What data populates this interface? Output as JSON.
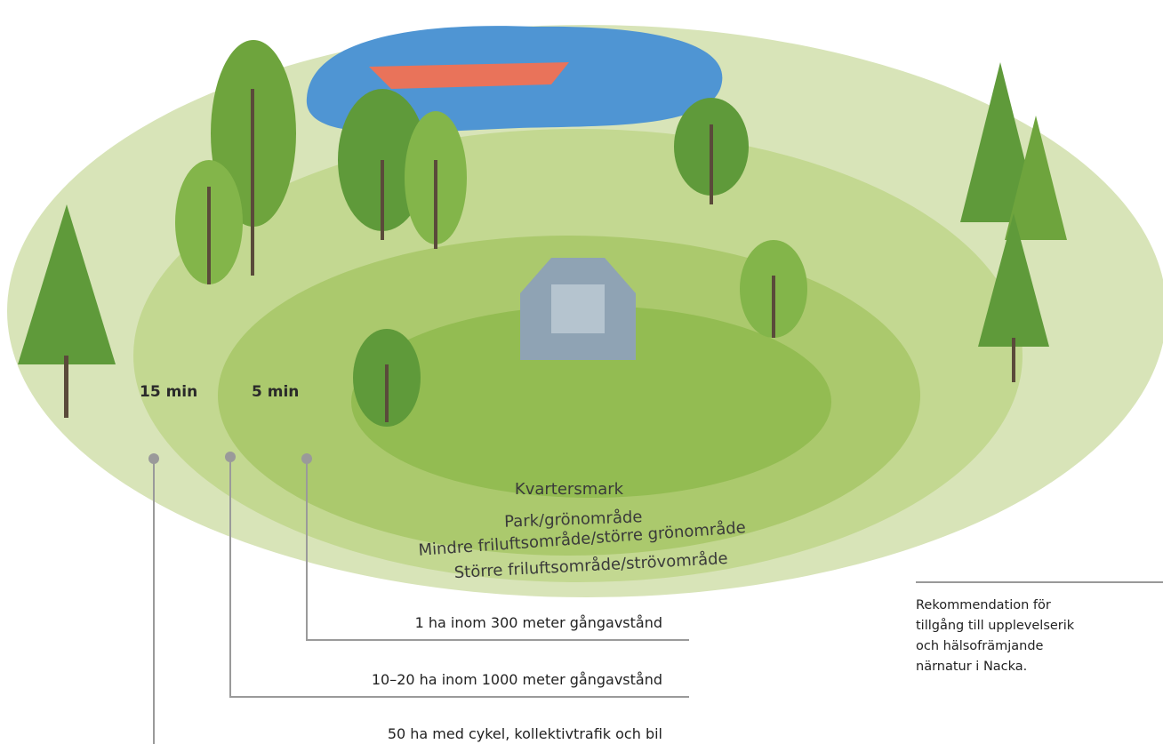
{
  "time_labels": [
    "15 min",
    "5 min"
  ],
  "zones": [
    "Kvartersmark",
    "Park/grönområde",
    "Mindre friluftsområde/större grönområde",
    "Större friluftsområde/strövområde"
  ],
  "recommendations": [
    "1 ha inom 300 meter gångavstånd",
    "10–20 ha inom 1000 meter gångavstånd",
    "50 ha med cykel, kollektivtrafik och bil"
  ],
  "caption": [
    "Rekommendation för",
    "tillgång till upplevelserik",
    "och hälsofrämjande",
    "närnatur i Nacka."
  ]
}
